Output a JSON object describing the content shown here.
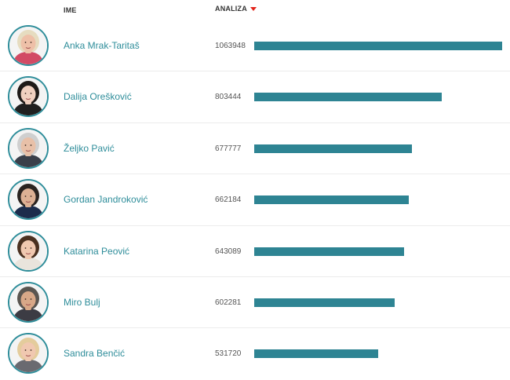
{
  "header": {
    "name_label": "IME",
    "analysis_label": "ANALIZA",
    "sort_icon": "sort-desc-triangle-icon",
    "accent_color": "#e2231a"
  },
  "bar_color": "#2e8493",
  "link_color": "#2e8d9a",
  "rows": [
    {
      "name": "Anka Mrak-Taritaš",
      "value": "1063948",
      "amount": 1063948,
      "hair": "#e6dcc0",
      "skin": "#eec0a8",
      "cloth": "#d24a64"
    },
    {
      "name": "Dalija Orešković",
      "value": "803444",
      "amount": 803444,
      "hair": "#1e1a18",
      "skin": "#f0d0c0",
      "cloth": "#202020"
    },
    {
      "name": "Željko Pavić",
      "value": "677777",
      "amount": 677777,
      "hair": "#cfcfcf",
      "skin": "#e8c0a8",
      "cloth": "#3a3f4a"
    },
    {
      "name": "Gordan Jandroković",
      "value": "662184",
      "amount": 662184,
      "hair": "#2a2320",
      "skin": "#dcb094",
      "cloth": "#1c2c4c"
    },
    {
      "name": "Katarina Peović",
      "value": "643089",
      "amount": 643089,
      "hair": "#4a3020",
      "skin": "#f0c8b0",
      "cloth": "#e9e4dc"
    },
    {
      "name": "Miro Bulj",
      "value": "602281",
      "amount": 602281,
      "hair": "#5a5550",
      "skin": "#d8a888",
      "cloth": "#3c3c44"
    },
    {
      "name": "Sandra Benčić",
      "value": "531720",
      "amount": 531720,
      "hair": "#e4cc9c",
      "skin": "#f0c8b0",
      "cloth": "#6a6a70"
    }
  ]
}
